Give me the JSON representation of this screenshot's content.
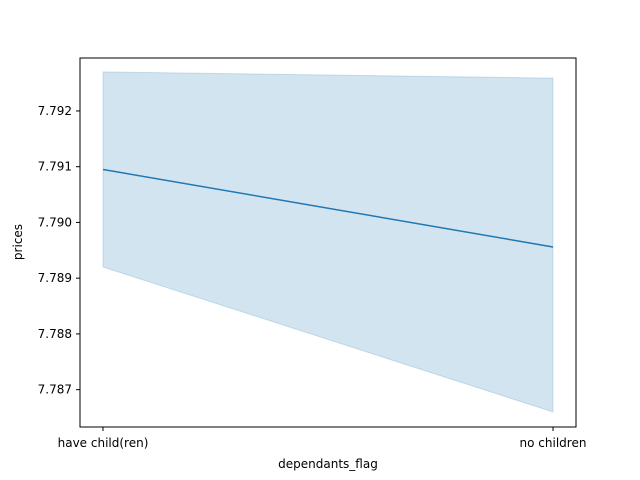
{
  "chart_data": {
    "type": "line",
    "title": "",
    "xlabel": "dependants_flag",
    "ylabel": "prices",
    "categories": [
      "have child(ren)",
      "no children"
    ],
    "series": [
      {
        "values": [
          7.79095,
          7.78956
        ],
        "ci_upper": [
          7.7927,
          7.79259
        ],
        "ci_lower": [
          7.7892,
          7.7866
        ]
      }
    ],
    "ylim": [
      7.78633,
      7.79295
    ],
    "yticks": [
      "7.787",
      "7.788",
      "7.789",
      "7.790",
      "7.791",
      "7.792"
    ],
    "ytick_values": [
      7.787,
      7.788,
      7.789,
      7.79,
      7.791,
      7.792
    ],
    "grid": false,
    "colors": {
      "line": "#1f77b4",
      "band": "#1f77b4"
    }
  }
}
